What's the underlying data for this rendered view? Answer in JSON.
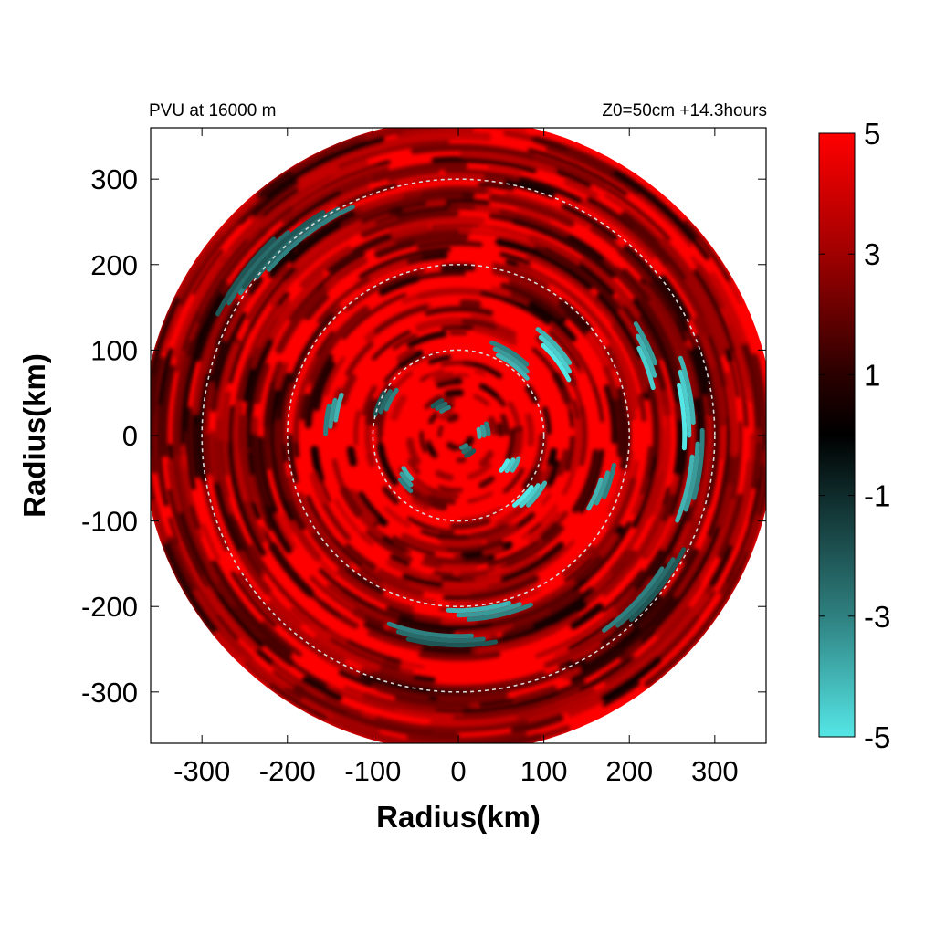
{
  "chart_data": {
    "type": "heatmap",
    "subtype": "polar-field",
    "title_left": "PVU at 16000 m",
    "title_right": "Z0=50cm  +14.3hours",
    "xlabel": "Radius(km)",
    "ylabel": "Radius(km)",
    "xlim": [
      -360,
      360
    ],
    "ylim": [
      -360,
      360
    ],
    "x_ticks": [
      -300,
      -200,
      -100,
      0,
      100,
      200,
      300
    ],
    "y_ticks": [
      300,
      200,
      100,
      0,
      -100,
      -200,
      -300
    ],
    "x_tick_labels": [
      "-300",
      "-200",
      "-100",
      "0",
      "100",
      "200",
      "300"
    ],
    "y_tick_labels": [
      "300",
      "200",
      "100",
      "0",
      "-100",
      "-200",
      "-300"
    ],
    "domain_radius_km": 370,
    "range_rings_km": [
      100,
      200,
      300
    ],
    "colorbar": {
      "min": -5,
      "max": 5,
      "tick_values": [
        5,
        3,
        1,
        -1,
        -3,
        -5
      ],
      "tick_labels": [
        "5",
        "3",
        "1",
        "-1",
        "-3",
        "-5"
      ],
      "stops": [
        {
          "value": -5,
          "color": "#55e6e6"
        },
        {
          "value": -3,
          "color": "#2f8080"
        },
        {
          "value": -1,
          "color": "#0f2b2b"
        },
        {
          "value": 0,
          "color": "#000000"
        },
        {
          "value": 1,
          "color": "#2a0000"
        },
        {
          "value": 3,
          "color": "#a00000"
        },
        {
          "value": 5,
          "color": "#ff0000"
        }
      ]
    },
    "grid": false,
    "dominant_value": 5,
    "negative_patches": [
      {
        "r_km": 240,
        "deg": 23,
        "value": -4.5
      },
      {
        "r_km": 270,
        "deg": 8,
        "value": -5
      },
      {
        "r_km": 150,
        "deg": 40,
        "value": -5
      },
      {
        "r_km": 110,
        "deg": 55,
        "value": -4
      },
      {
        "r_km": 70,
        "deg": -30,
        "value": -5
      },
      {
        "r_km": 110,
        "deg": -40,
        "value": -5
      },
      {
        "r_km": 30,
        "deg": 10,
        "value": -4
      },
      {
        "r_km": 20,
        "deg": -60,
        "value": -3
      },
      {
        "r_km": 180,
        "deg": -20,
        "value": -4
      },
      {
        "r_km": 280,
        "deg": -10,
        "value": -4
      },
      {
        "r_km": 210,
        "deg": -80,
        "value": -4
      },
      {
        "r_km": 240,
        "deg": -95,
        "value": -3
      },
      {
        "r_km": 150,
        "deg": 170,
        "value": -4
      },
      {
        "r_km": 95,
        "deg": 155,
        "value": -3
      },
      {
        "r_km": 310,
        "deg": 140,
        "value": -3
      },
      {
        "r_km": 300,
        "deg": 130,
        "value": -3
      },
      {
        "r_km": 80,
        "deg": -140,
        "value": -4
      },
      {
        "r_km": 40,
        "deg": 120,
        "value": -3
      },
      {
        "r_km": 290,
        "deg": -40,
        "value": -3
      }
    ],
    "colors": {
      "ring": "#d9d9d9",
      "frame": "#000000"
    }
  }
}
